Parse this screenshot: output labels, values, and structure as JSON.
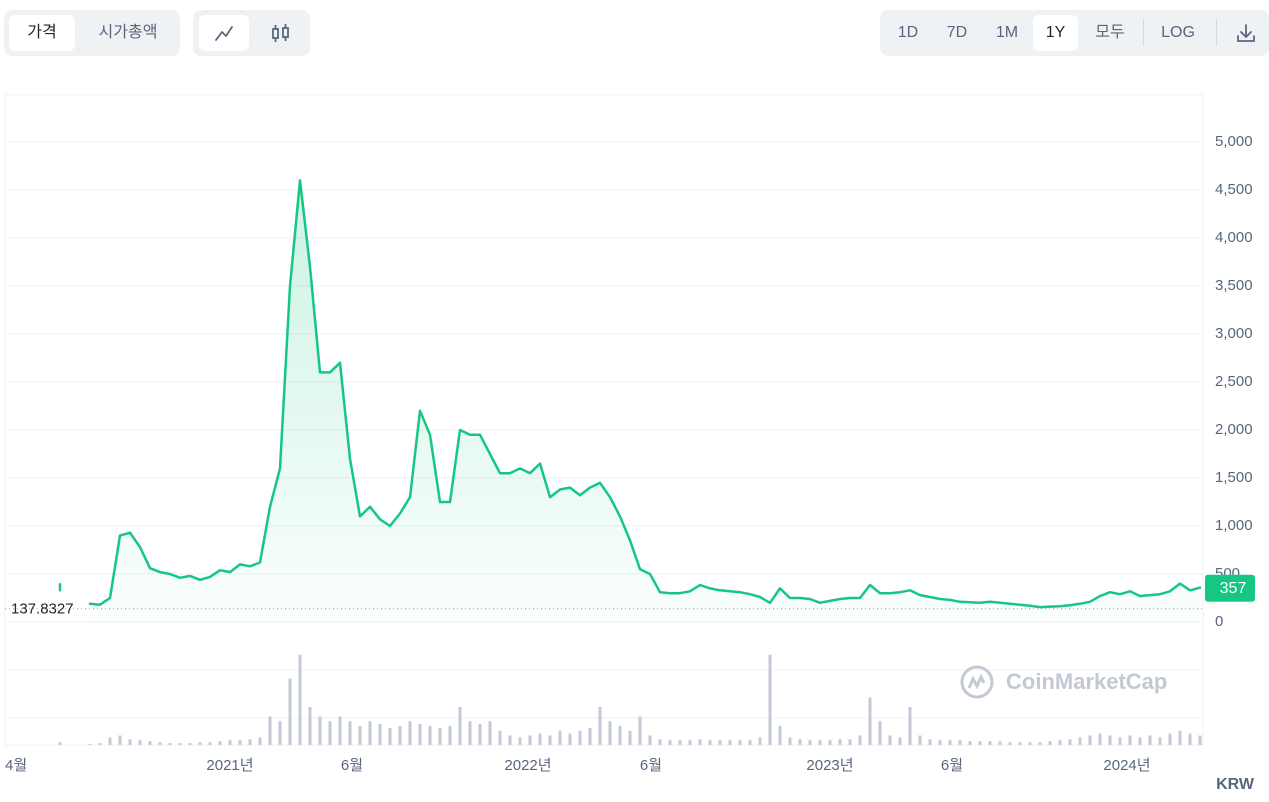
{
  "controls": {
    "metric_tabs": [
      "가격",
      "시가총액"
    ],
    "ranges": [
      "1D",
      "7D",
      "1M",
      "1Y",
      "모두"
    ],
    "log": "LOG"
  },
  "chart_data": {
    "type": "line",
    "series": [
      {
        "color": "#16c784",
        "values": [
          330,
          null,
          null,
          190,
          180,
          250,
          900,
          930,
          780,
          560,
          520,
          500,
          460,
          480,
          440,
          470,
          540,
          520,
          600,
          580,
          620,
          1200,
          1600,
          3500,
          4600,
          3700,
          2600,
          2600,
          2700,
          1700,
          1100,
          1200,
          1070,
          1000,
          1130,
          1300,
          2200,
          1950,
          1250,
          1250,
          2000,
          1950,
          1950,
          1750,
          1550,
          1550,
          1600,
          1550,
          1650,
          1300,
          1380,
          1400,
          1320,
          1400,
          1450,
          1300,
          1100,
          850,
          550,
          500,
          310,
          300,
          300,
          320,
          385,
          350,
          330,
          320,
          310,
          290,
          260,
          200,
          350,
          250,
          250,
          240,
          200,
          220,
          240,
          250,
          250,
          385,
          300,
          300,
          310,
          330,
          280,
          260,
          240,
          230,
          210,
          205,
          200,
          210,
          200,
          190,
          180,
          170,
          155,
          160,
          165,
          175,
          190,
          210,
          270,
          310,
          290,
          320,
          270,
          280,
          290,
          320,
          400,
          330,
          357
        ]
      }
    ],
    "volume": {
      "color": "#c3c9d6",
      "vlim": [
        0,
        100
      ],
      "values": [
        3,
        0,
        0,
        1,
        2,
        8,
        10,
        6,
        5,
        4,
        3,
        2,
        2,
        2,
        3,
        3,
        4,
        5,
        5,
        6,
        8,
        30,
        25,
        70,
        95,
        40,
        30,
        25,
        30,
        25,
        20,
        25,
        22,
        18,
        20,
        25,
        22,
        20,
        18,
        20,
        40,
        25,
        22,
        25,
        15,
        10,
        8,
        10,
        12,
        10,
        15,
        12,
        15,
        18,
        40,
        25,
        20,
        15,
        30,
        10,
        6,
        5,
        5,
        5,
        6,
        5,
        5,
        5,
        5,
        5,
        8,
        95,
        20,
        8,
        6,
        5,
        5,
        5,
        6,
        6,
        10,
        50,
        25,
        10,
        8,
        40,
        10,
        6,
        5,
        5,
        5,
        4,
        4,
        4,
        4,
        3,
        3,
        3,
        3,
        4,
        5,
        6,
        8,
        10,
        12,
        10,
        8,
        10,
        8,
        10,
        8,
        12,
        15,
        12,
        10
      ]
    },
    "xlim": [
      -5.5,
      114.3
    ],
    "xticks": [
      {
        "value": -4.2,
        "label": "4월"
      },
      {
        "value": 17,
        "label": "2021년"
      },
      {
        "value": 29.2,
        "label": "6월"
      },
      {
        "value": 46.8,
        "label": "2022년"
      },
      {
        "value": 59.1,
        "label": "6월"
      },
      {
        "value": 77,
        "label": "2023년"
      },
      {
        "value": 89.2,
        "label": "6월"
      },
      {
        "value": 106.7,
        "label": "2024년"
      }
    ],
    "ylim": [
      0,
      5490
    ],
    "yticks": [
      0,
      500,
      {
        "value": 1000,
        "label": "1,000"
      },
      {
        "value": 1500,
        "label": "1,500"
      },
      {
        "value": 2000,
        "label": "2,000"
      },
      {
        "value": 2500,
        "label": "2,500"
      },
      {
        "value": 3000,
        "label": "3,000"
      },
      {
        "value": 3500,
        "label": "3,500"
      },
      {
        "value": 4000,
        "label": "4,000"
      },
      {
        "value": 4500,
        "label": "4,500"
      },
      {
        "value": 5000,
        "label": "5,000"
      }
    ],
    "grid": true,
    "reference_line": 137.8327,
    "current_price": 357,
    "currency": "KRW",
    "watermark": "CoinMarketCap"
  }
}
